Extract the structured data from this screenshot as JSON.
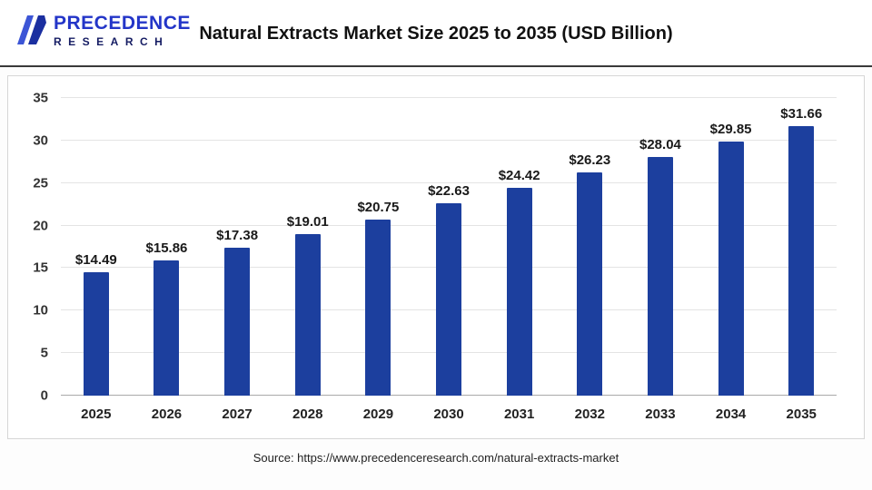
{
  "header": {
    "title": "Natural Extracts Market Size 2025 to 2035 (USD Billion)",
    "logo": {
      "line1": "PRECEDENCE",
      "line2": "RESEARCH"
    }
  },
  "chart_data": {
    "type": "bar",
    "title": "Natural Extracts Market Size 2025 to 2035 (USD Billion)",
    "categories": [
      "2025",
      "2026",
      "2027",
      "2028",
      "2029",
      "2030",
      "2031",
      "2032",
      "2033",
      "2034",
      "2035"
    ],
    "values": [
      14.49,
      15.86,
      17.38,
      19.01,
      20.75,
      22.63,
      24.42,
      26.23,
      28.04,
      29.85,
      31.66
    ],
    "value_labels": [
      "$14.49",
      "$15.86",
      "$17.38",
      "$19.01",
      "$20.75",
      "$22.63",
      "$24.42",
      "$26.23",
      "$28.04",
      "$29.85",
      "$31.66"
    ],
    "xlabel": "",
    "ylabel": "",
    "ylim": [
      0,
      35
    ],
    "yticks": [
      0,
      5,
      10,
      15,
      20,
      25,
      30,
      35
    ],
    "grid": true,
    "legend": "none",
    "bar_color": "#1c3f9e",
    "logo_colors": {
      "primary_blue": "#2335c8",
      "dark_navy": "#151c63"
    }
  },
  "footer": {
    "source": "Source: https://www.precedenceresearch.com/natural-extracts-market"
  }
}
